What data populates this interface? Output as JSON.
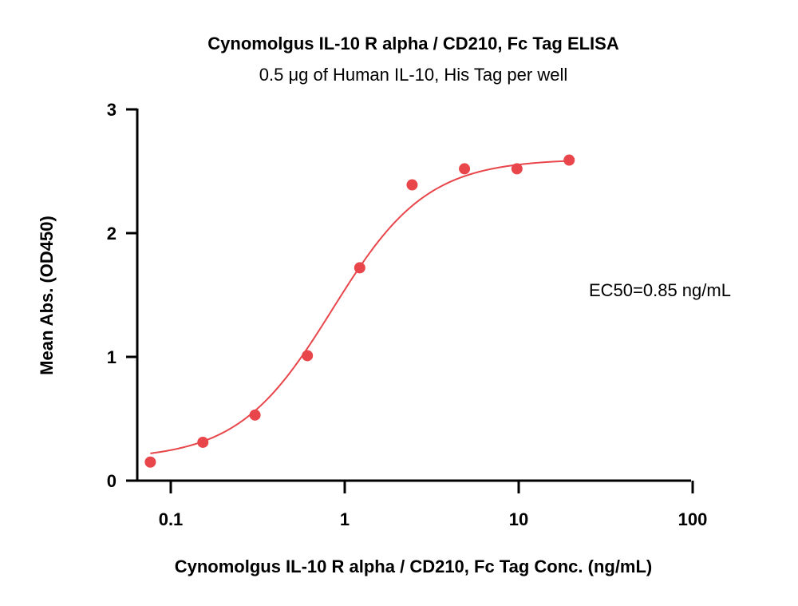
{
  "chart_data": {
    "type": "scatter",
    "title": "Cynomolgus IL-10 R alpha / CD210, Fc Tag  ELISA",
    "subtitle": "0.5 μg of Human IL-10, His Tag per well",
    "xlabel": "Cynomolgus IL-10 R alpha / CD210, Fc Tag  Conc. (ng/mL)",
    "ylabel": "Mean Abs. (OD450)",
    "xscale": "log",
    "xlim": [
      0.06,
      100
    ],
    "ylim": [
      0,
      3
    ],
    "xticks": [
      {
        "value": 0.1,
        "label": "0.1"
      },
      {
        "value": 1,
        "label": "1"
      },
      {
        "value": 10,
        "label": "10"
      },
      {
        "value": 100,
        "label": "100"
      }
    ],
    "yticks": [
      {
        "value": 0,
        "label": "0"
      },
      {
        "value": 1,
        "label": "1"
      },
      {
        "value": 2,
        "label": "2"
      },
      {
        "value": 3,
        "label": "3"
      }
    ],
    "series": [
      {
        "color": "#e8464a",
        "points": [
          {
            "x": 0.0763,
            "y": 0.15
          },
          {
            "x": 0.153,
            "y": 0.31
          },
          {
            "x": 0.305,
            "y": 0.53
          },
          {
            "x": 0.61,
            "y": 1.01
          },
          {
            "x": 1.22,
            "y": 1.72
          },
          {
            "x": 2.44,
            "y": 2.39
          },
          {
            "x": 4.88,
            "y": 2.52
          },
          {
            "x": 9.77,
            "y": 2.52
          },
          {
            "x": 19.5,
            "y": 2.59
          }
        ],
        "fit": {
          "model": "4PL",
          "bottom": 0.17,
          "top": 2.6,
          "ec50": 0.85,
          "hill": 1.6,
          "x_range": [
            0.0763,
            19.5
          ]
        }
      }
    ],
    "annotations": [
      {
        "text": "EC50=0.85 ng/mL"
      }
    ],
    "grid": false,
    "legend": "none"
  }
}
